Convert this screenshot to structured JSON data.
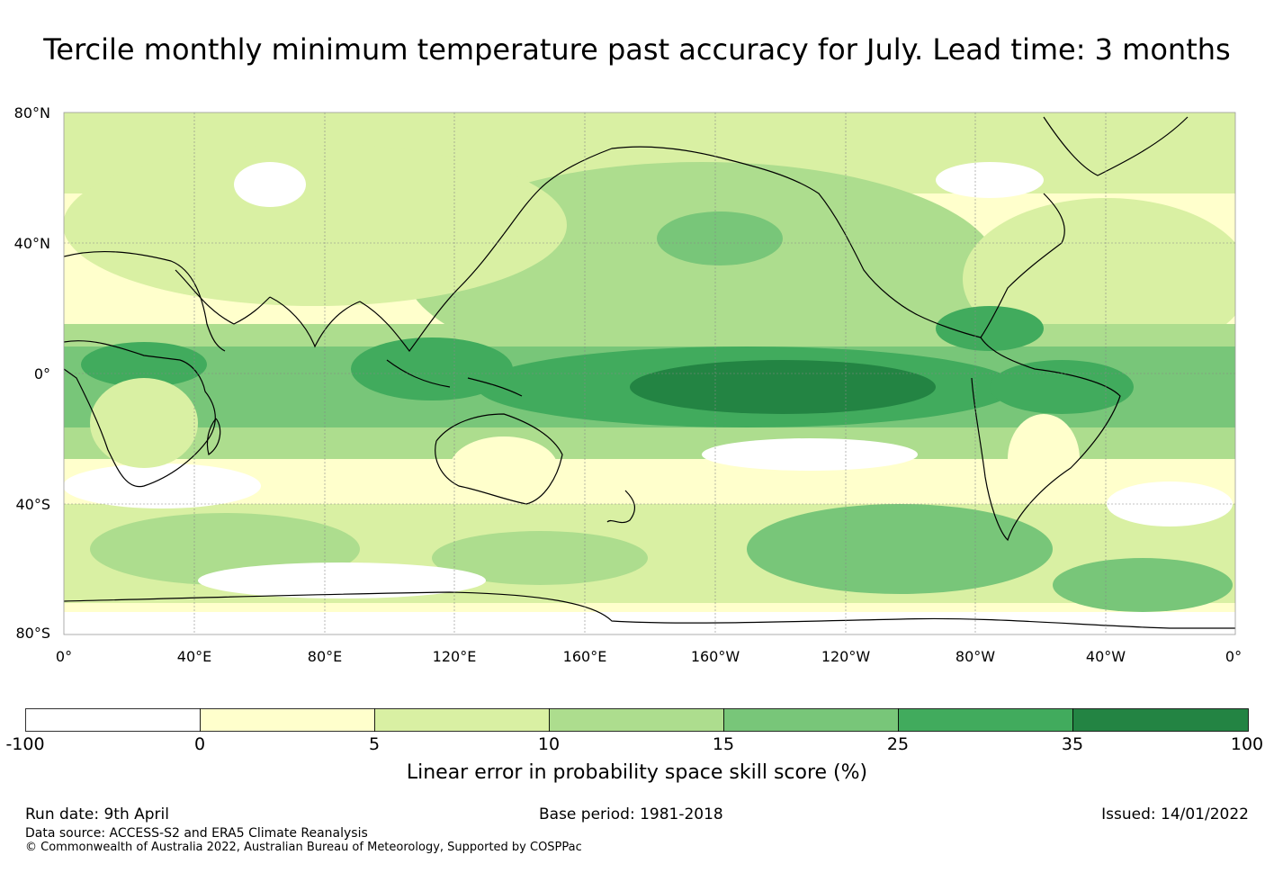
{
  "title": "Tercile monthly minimum temperature past accuracy for July. Lead time: 3 months",
  "map": {
    "lat_labels": [
      "80°N",
      "40°N",
      "0°",
      "40°S",
      "80°S"
    ],
    "lon_labels": [
      "0°",
      "40°E",
      "80°E",
      "120°E",
      "160°E",
      "160°W",
      "120°W",
      "80°W",
      "40°W",
      "0°"
    ],
    "colors": {
      "c0": "#ffffff",
      "c1": "#ffffcc",
      "c2": "#d9f0a3",
      "c3": "#addd8e",
      "c4": "#78c679",
      "c5": "#41ab5d",
      "c6": "#238443",
      "land_line": "#000000",
      "grid": "#888888"
    }
  },
  "colorbar": {
    "levels": [
      "-100",
      "0",
      "5",
      "10",
      "15",
      "25",
      "35",
      "100"
    ],
    "colors": [
      "#ffffff",
      "#ffffcc",
      "#d9f0a3",
      "#addd8e",
      "#78c679",
      "#41ab5d",
      "#238443"
    ],
    "label": "Linear error in probability space skill score (%)"
  },
  "footer": {
    "run_date": "Run date: 9th April",
    "base_period": "Base period: 1981-2018",
    "issued": "Issued: 14/01/2022",
    "data_source": "Data source: ACCESS-S2 and ERA5 Climate Reanalysis",
    "copyright": "© Commonwealth of Australia 2022, Australian Bureau of Meteorology, Supported by COSPPac"
  }
}
